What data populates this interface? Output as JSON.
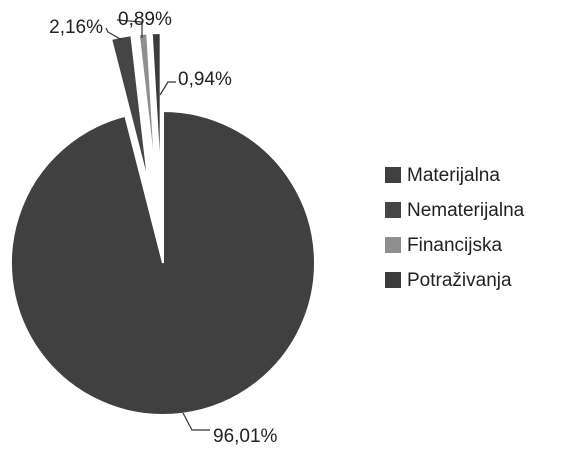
{
  "chart_data": {
    "type": "pie",
    "categories": [
      "Materijalna",
      "Nematerijalna",
      "Financijska",
      "Potraživanja"
    ],
    "values": [
      96.01,
      2.16,
      0.89,
      0.94
    ],
    "value_labels": [
      "96,01%",
      "2,16%",
      "0,89%",
      "0,94%"
    ],
    "colors": [
      "#404040",
      "#454545",
      "#8f8f8f",
      "#3c3c3c"
    ],
    "legend": "right"
  }
}
